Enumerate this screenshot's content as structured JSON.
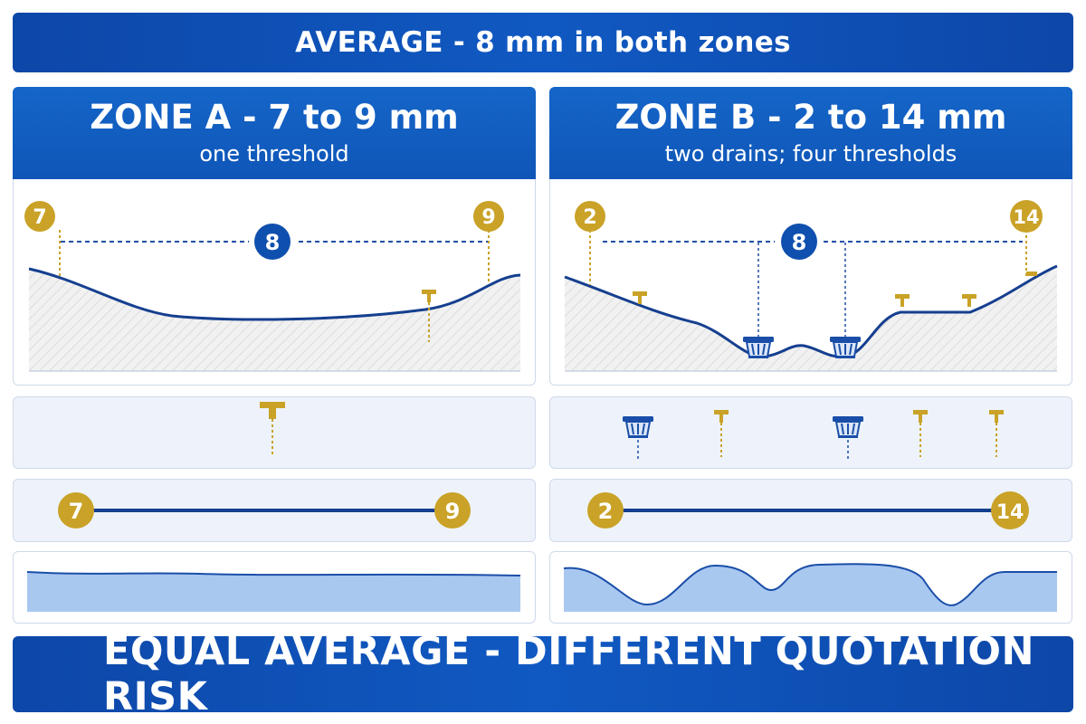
{
  "top_banner": "AVERAGE - 8 mm in both zones",
  "bottom_banner": "EQUAL AVERAGE - DIFFERENT QUOTATION RISK",
  "zone_a": {
    "title": "ZONE A - 7 to 9 mm",
    "subtitle": "one threshold",
    "min_label": "7",
    "max_label": "9",
    "avg_label": "8",
    "range_min": "7",
    "range_max": "9"
  },
  "zone_b": {
    "title": "ZONE B - 2 to 14 mm",
    "subtitle": "two drains; four thresholds",
    "min_label": "2",
    "max_label": "14",
    "avg_label": "8",
    "range_min": "2",
    "range_max": "14"
  },
  "colors": {
    "blue": "#0f56b8",
    "navy": "#133f8f",
    "gold": "#c9a227",
    "light_fill": "#a9c8f0"
  },
  "icons": [
    "threshold-icon",
    "drain-icon"
  ]
}
